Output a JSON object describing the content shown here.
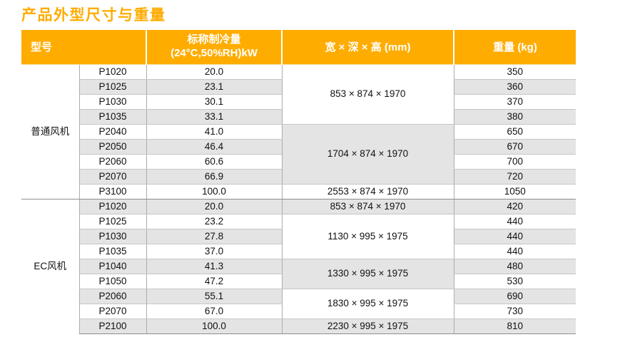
{
  "page": {
    "title": "产品外型尺寸与重量"
  },
  "colors": {
    "accent": "#FFAC00",
    "stripe": "#E4E4E4",
    "header_text": "#FFFFFF",
    "body_text": "#111111"
  },
  "table": {
    "headers": {
      "model": "型号",
      "cooling_line1": "标称制冷量",
      "cooling_line2": "(24°C,50%RH)kW",
      "dimensions": "宽 × 深 × 高 (mm)",
      "weight": "重量 (kg)"
    },
    "groups": [
      {
        "name": "普通风机",
        "rows": [
          {
            "model": "P1020",
            "cooling": "20.0",
            "weight": "350"
          },
          {
            "model": "P1025",
            "cooling": "23.1",
            "weight": "360"
          },
          {
            "model": "P1030",
            "cooling": "30.1",
            "weight": "370"
          },
          {
            "model": "P1035",
            "cooling": "33.1",
            "weight": "380"
          },
          {
            "model": "P2040",
            "cooling": "41.0",
            "weight": "650"
          },
          {
            "model": "P2050",
            "cooling": "46.4",
            "weight": "670"
          },
          {
            "model": "P2060",
            "cooling": "60.6",
            "weight": "700"
          },
          {
            "model": "P2070",
            "cooling": "66.9",
            "weight": "720"
          },
          {
            "model": "P3100",
            "cooling": "100.0",
            "weight": "1050"
          }
        ],
        "dim_groups": [
          {
            "text": "853 × 874 × 1970",
            "span": 4
          },
          {
            "text": "1704 × 874 × 1970",
            "span": 4
          },
          {
            "text": "2553 × 874 × 1970",
            "span": 1
          }
        ]
      },
      {
        "name": "EC风机",
        "rows": [
          {
            "model": "P1020",
            "cooling": "20.0",
            "weight": "420"
          },
          {
            "model": "P1025",
            "cooling": "23.2",
            "weight": "440"
          },
          {
            "model": "P1030",
            "cooling": "27.8",
            "weight": "440"
          },
          {
            "model": "P1035",
            "cooling": "37.0",
            "weight": "440"
          },
          {
            "model": "P1040",
            "cooling": "41.3",
            "weight": "480"
          },
          {
            "model": "P1050",
            "cooling": "47.2",
            "weight": "530"
          },
          {
            "model": "P2060",
            "cooling": "55.1",
            "weight": "690"
          },
          {
            "model": "P2070",
            "cooling": "67.0",
            "weight": "730"
          },
          {
            "model": "P2100",
            "cooling": "100.0",
            "weight": "810"
          }
        ],
        "dim_groups": [
          {
            "text": "853 × 874 × 1970",
            "span": 1
          },
          {
            "text": "1130 × 995 × 1975",
            "span": 3
          },
          {
            "text": "1330 × 995 × 1975",
            "span": 2
          },
          {
            "text": "1830 × 995 × 1975",
            "span": 2
          },
          {
            "text": "2230 × 995 × 1975",
            "span": 1
          }
        ]
      }
    ]
  }
}
